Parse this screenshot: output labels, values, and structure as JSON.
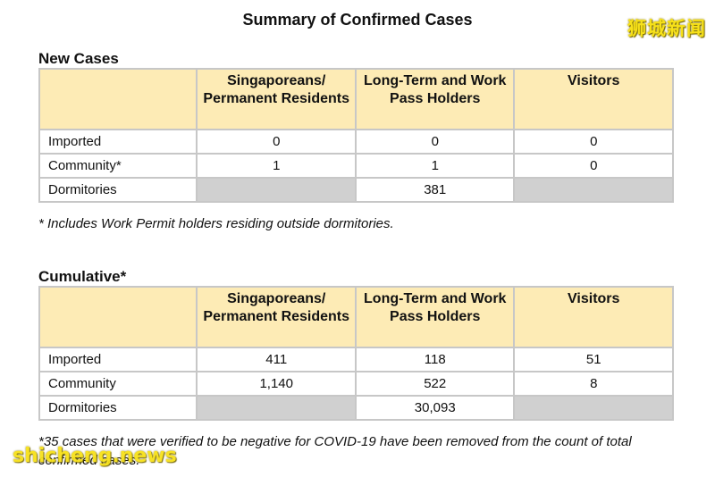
{
  "title": "Summary of Confirmed Cases",
  "watermark_cn": "狮城新闻",
  "watermark_en": "shicheng.news",
  "new_cases": {
    "heading": "New Cases",
    "headers": [
      "Singaporeans/ Permanent Residents",
      "Long-Term and Work Pass Holders",
      "Visitors"
    ],
    "rows": [
      {
        "label": "Imported",
        "values": [
          "0",
          "0",
          "0"
        ]
      },
      {
        "label": "Community*",
        "values": [
          "1",
          "1",
          "0"
        ]
      },
      {
        "label": "Dormitories",
        "values": [
          "",
          "381",
          ""
        ]
      }
    ],
    "footnote": "* Includes Work Permit holders residing outside dormitories."
  },
  "cumulative": {
    "heading": "Cumulative*",
    "headers": [
      "Singaporeans/ Permanent Residents",
      "Long-Term and Work Pass Holders",
      "Visitors"
    ],
    "rows": [
      {
        "label": "Imported",
        "values": [
          "411",
          "118",
          "51"
        ]
      },
      {
        "label": "Community",
        "values": [
          "1,140",
          "522",
          "8"
        ]
      },
      {
        "label": "Dormitories",
        "values": [
          "",
          "30,093",
          ""
        ]
      }
    ],
    "footnote": "*35 cases that were verified to be negative for COVID-19 have been removed from the count of total confirmed cases."
  },
  "colors": {
    "header_fill": "#fdebb5",
    "empty_cell_fill": "#d0d0d0",
    "border": "#c7c7c7",
    "watermark": "#f7e11a"
  }
}
